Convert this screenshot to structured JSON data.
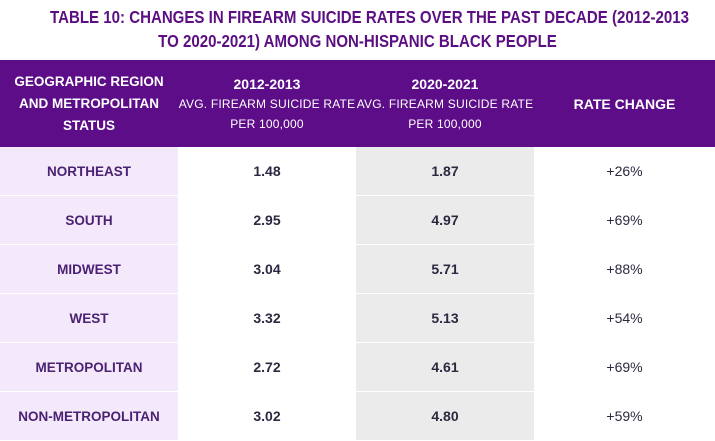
{
  "title": {
    "line1": "TABLE 10: CHANGES IN FIREARM SUICIDE RATES OVER THE PAST DECADE (2012-2013",
    "line2": "TO 2020-2021) AMONG  NON-HISPANIC BLACK PEOPLE"
  },
  "header": {
    "col1": {
      "line1": "GEOGRAPHIC REGION",
      "line2": "AND METROPOLITAN",
      "line3": "STATUS"
    },
    "col2": {
      "main": "2012-2013",
      "sub1": "AVG. FIREARM SUICIDE RATE",
      "sub2": "PER 100,000"
    },
    "col3": {
      "main": "2020-2021",
      "sub1": "AVG. FIREARM SUICIDE RATE",
      "sub2": "PER 100,000"
    },
    "col4": {
      "main": "RATE CHANGE"
    }
  },
  "rows": [
    {
      "region": "NORTHEAST",
      "rate_2012_2013": "1.48",
      "rate_2020_2021": "1.87",
      "change": "+26%"
    },
    {
      "region": "SOUTH",
      "rate_2012_2013": "2.95",
      "rate_2020_2021": "4.97",
      "change": "+69%"
    },
    {
      "region": "MIDWEST",
      "rate_2012_2013": "3.04",
      "rate_2020_2021": "5.71",
      "change": "+88%"
    },
    {
      "region": "WEST",
      "rate_2012_2013": "3.32",
      "rate_2020_2021": "5.13",
      "change": "+54%"
    },
    {
      "region": "METROPOLITAN",
      "rate_2012_2013": "2.72",
      "rate_2020_2021": "4.61",
      "change": "+69%"
    },
    {
      "region": "NON-METROPOLITAN",
      "rate_2012_2013": "3.02",
      "rate_2020_2021": "4.80",
      "change": "+59%"
    }
  ],
  "colors": {
    "header_bg": "#5c0d87",
    "title_text": "#5b0f82",
    "region_bg": "#f4e9fa",
    "shaded_column_bg": "#ebebeb"
  }
}
